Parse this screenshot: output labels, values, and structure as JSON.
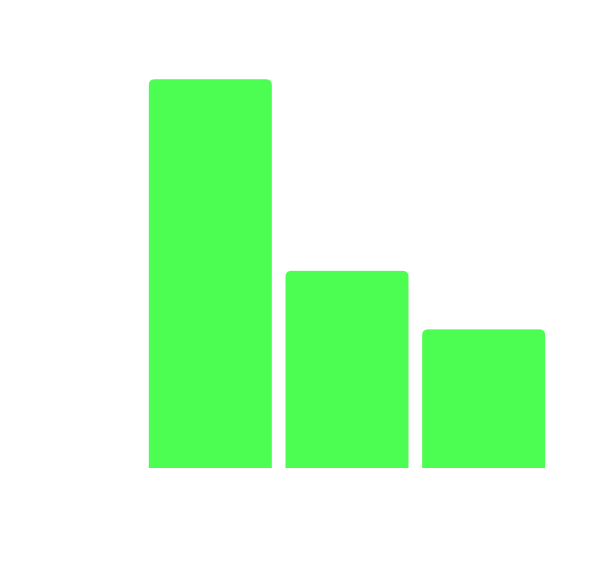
{
  "chart_data": {
    "type": "bar",
    "values": [
      4.18,
      2.12,
      1.49
    ],
    "color": "#4cfd52",
    "ylim": [
      0,
      4.5
    ]
  }
}
